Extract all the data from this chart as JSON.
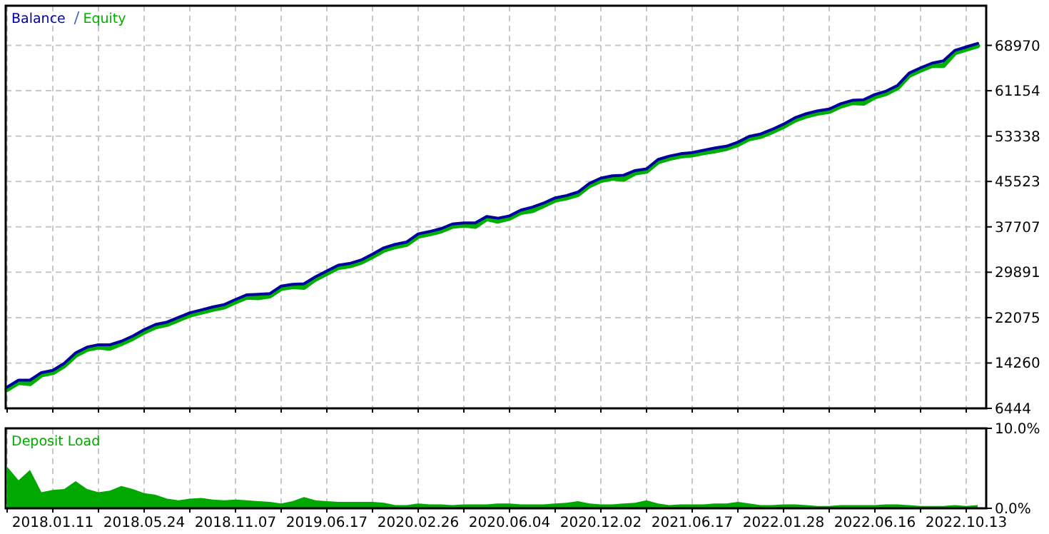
{
  "chart_data": [
    {
      "type": "line",
      "legend": "top left",
      "grid": true,
      "tick_labels": "y",
      "line_style": "solid",
      "categories": [
        null,
        null,
        null,
        null,
        "2018.01.11",
        null,
        null,
        null,
        null,
        null,
        null,
        null,
        "2018.05.24",
        null,
        null,
        null,
        null,
        null,
        null,
        null,
        "2018.11.07",
        null,
        null,
        null,
        null,
        null,
        null,
        null,
        "2019.06.17",
        null,
        null,
        null,
        null,
        null,
        null,
        null,
        "2020.02.26",
        null,
        null,
        null,
        null,
        null,
        null,
        null,
        "2020.06.04",
        null,
        null,
        null,
        null,
        null,
        null,
        null,
        "2020.12.02",
        null,
        null,
        null,
        null,
        null,
        null,
        null,
        "2021.06.17",
        null,
        null,
        null,
        null,
        null,
        null,
        null,
        "2022.01.28",
        null,
        null,
        null,
        null,
        null,
        null,
        null,
        "2022.06.16",
        null,
        null,
        null,
        null,
        null,
        null,
        null,
        "2022.10.13",
        null
      ],
      "ylim": [
        6444,
        75800
      ],
      "yticks": [
        6444,
        14260,
        22075,
        29891,
        37707,
        45523,
        53338,
        61154,
        68970
      ],
      "series": [
        {
          "name": "Balance",
          "color": "#0000a0",
          "values": [
            10100,
            11300,
            11300,
            12600,
            13000,
            14200,
            16000,
            17000,
            17400,
            17400,
            18000,
            18900,
            20000,
            20900,
            21300,
            22100,
            22900,
            23400,
            23900,
            24300,
            25200,
            26000,
            26100,
            26200,
            27500,
            27800,
            27900,
            29100,
            30100,
            31100,
            31400,
            32000,
            33000,
            34100,
            34700,
            35100,
            36500,
            36900,
            37400,
            38200,
            38400,
            38400,
            39500,
            39200,
            39600,
            40600,
            41100,
            41800,
            42700,
            43100,
            43700,
            45200,
            46100,
            46500,
            46600,
            47400,
            47700,
            49300,
            49900,
            50300,
            50500,
            50900,
            51300,
            51600,
            52300,
            53300,
            53700,
            54500,
            55400,
            56500,
            57200,
            57700,
            58000,
            58900,
            59500,
            59600,
            60500,
            61100,
            62100,
            64200,
            65100,
            65900,
            66300,
            68100,
            68700,
            69300
          ]
        },
        {
          "name": "Equity",
          "color": "#00b000",
          "values": [
            9700,
            10900,
            10700,
            12200,
            12600,
            13800,
            15600,
            16600,
            17000,
            16800,
            17600,
            18500,
            19600,
            20500,
            20900,
            21700,
            22500,
            23000,
            23500,
            23900,
            24800,
            25600,
            25500,
            25800,
            27100,
            27400,
            27300,
            28700,
            29700,
            30700,
            31000,
            31600,
            32600,
            33700,
            34300,
            34700,
            36100,
            36500,
            37000,
            37800,
            38000,
            37800,
            39100,
            38700,
            39200,
            40200,
            40500,
            41400,
            42300,
            42700,
            43300,
            44800,
            45700,
            46100,
            45900,
            47000,
            47300,
            48900,
            49500,
            49900,
            50100,
            50500,
            50800,
            51200,
            51900,
            52900,
            53300,
            54100,
            55000,
            56100,
            56800,
            57300,
            57600,
            58500,
            59100,
            59000,
            60100,
            60700,
            61700,
            63800,
            64700,
            65500,
            65500,
            67700,
            68300,
            68900
          ]
        }
      ]
    },
    {
      "type": "area",
      "legend": "top left",
      "grid": "x",
      "categories": [
        null,
        null,
        null,
        null,
        "2018.01.11",
        null,
        null,
        null,
        null,
        null,
        null,
        null,
        "2018.05.24",
        null,
        null,
        null,
        null,
        null,
        null,
        null,
        "2018.11.07",
        null,
        null,
        null,
        null,
        null,
        null,
        null,
        "2019.06.17",
        null,
        null,
        null,
        null,
        null,
        null,
        null,
        "2020.02.26",
        null,
        null,
        null,
        null,
        null,
        null,
        null,
        "2020.06.04",
        null,
        null,
        null,
        null,
        null,
        null,
        null,
        "2020.12.02",
        null,
        null,
        null,
        null,
        null,
        null,
        null,
        "2021.06.17",
        null,
        null,
        null,
        null,
        null,
        null,
        null,
        "2022.01.28",
        null,
        null,
        null,
        null,
        null,
        null,
        null,
        "2022.06.16",
        null,
        null,
        null,
        null,
        null,
        null,
        null,
        "2022.10.13",
        null
      ],
      "ylim": [
        0,
        10
      ],
      "yticks": [
        {
          "value": 0,
          "label": "0.0%"
        },
        {
          "value": 10,
          "label": "10.0%"
        }
      ],
      "series": [
        {
          "name": "Deposit Load",
          "color": "#00a800",
          "values": [
            5.2,
            3.5,
            4.8,
            2.0,
            2.3,
            2.4,
            3.4,
            2.4,
            2.0,
            2.2,
            2.8,
            2.4,
            1.9,
            1.7,
            1.2,
            1.0,
            1.2,
            1.3,
            1.1,
            1.0,
            1.1,
            1.0,
            0.9,
            0.8,
            0.6,
            0.9,
            1.4,
            1.0,
            0.9,
            0.8,
            0.8,
            0.8,
            0.8,
            0.7,
            0.4,
            0.4,
            0.6,
            0.5,
            0.5,
            0.4,
            0.5,
            0.5,
            0.5,
            0.6,
            0.6,
            0.5,
            0.5,
            0.5,
            0.6,
            0.7,
            0.9,
            0.6,
            0.5,
            0.5,
            0.6,
            0.7,
            1.0,
            0.6,
            0.4,
            0.5,
            0.5,
            0.5,
            0.6,
            0.6,
            0.8,
            0.6,
            0.4,
            0.4,
            0.5,
            0.5,
            0.4,
            0.3,
            0.3,
            0.4,
            0.4,
            0.4,
            0.4,
            0.5,
            0.5,
            0.4,
            0.3,
            0.3,
            0.3,
            0.4,
            0.3,
            0.4
          ]
        }
      ]
    }
  ]
}
